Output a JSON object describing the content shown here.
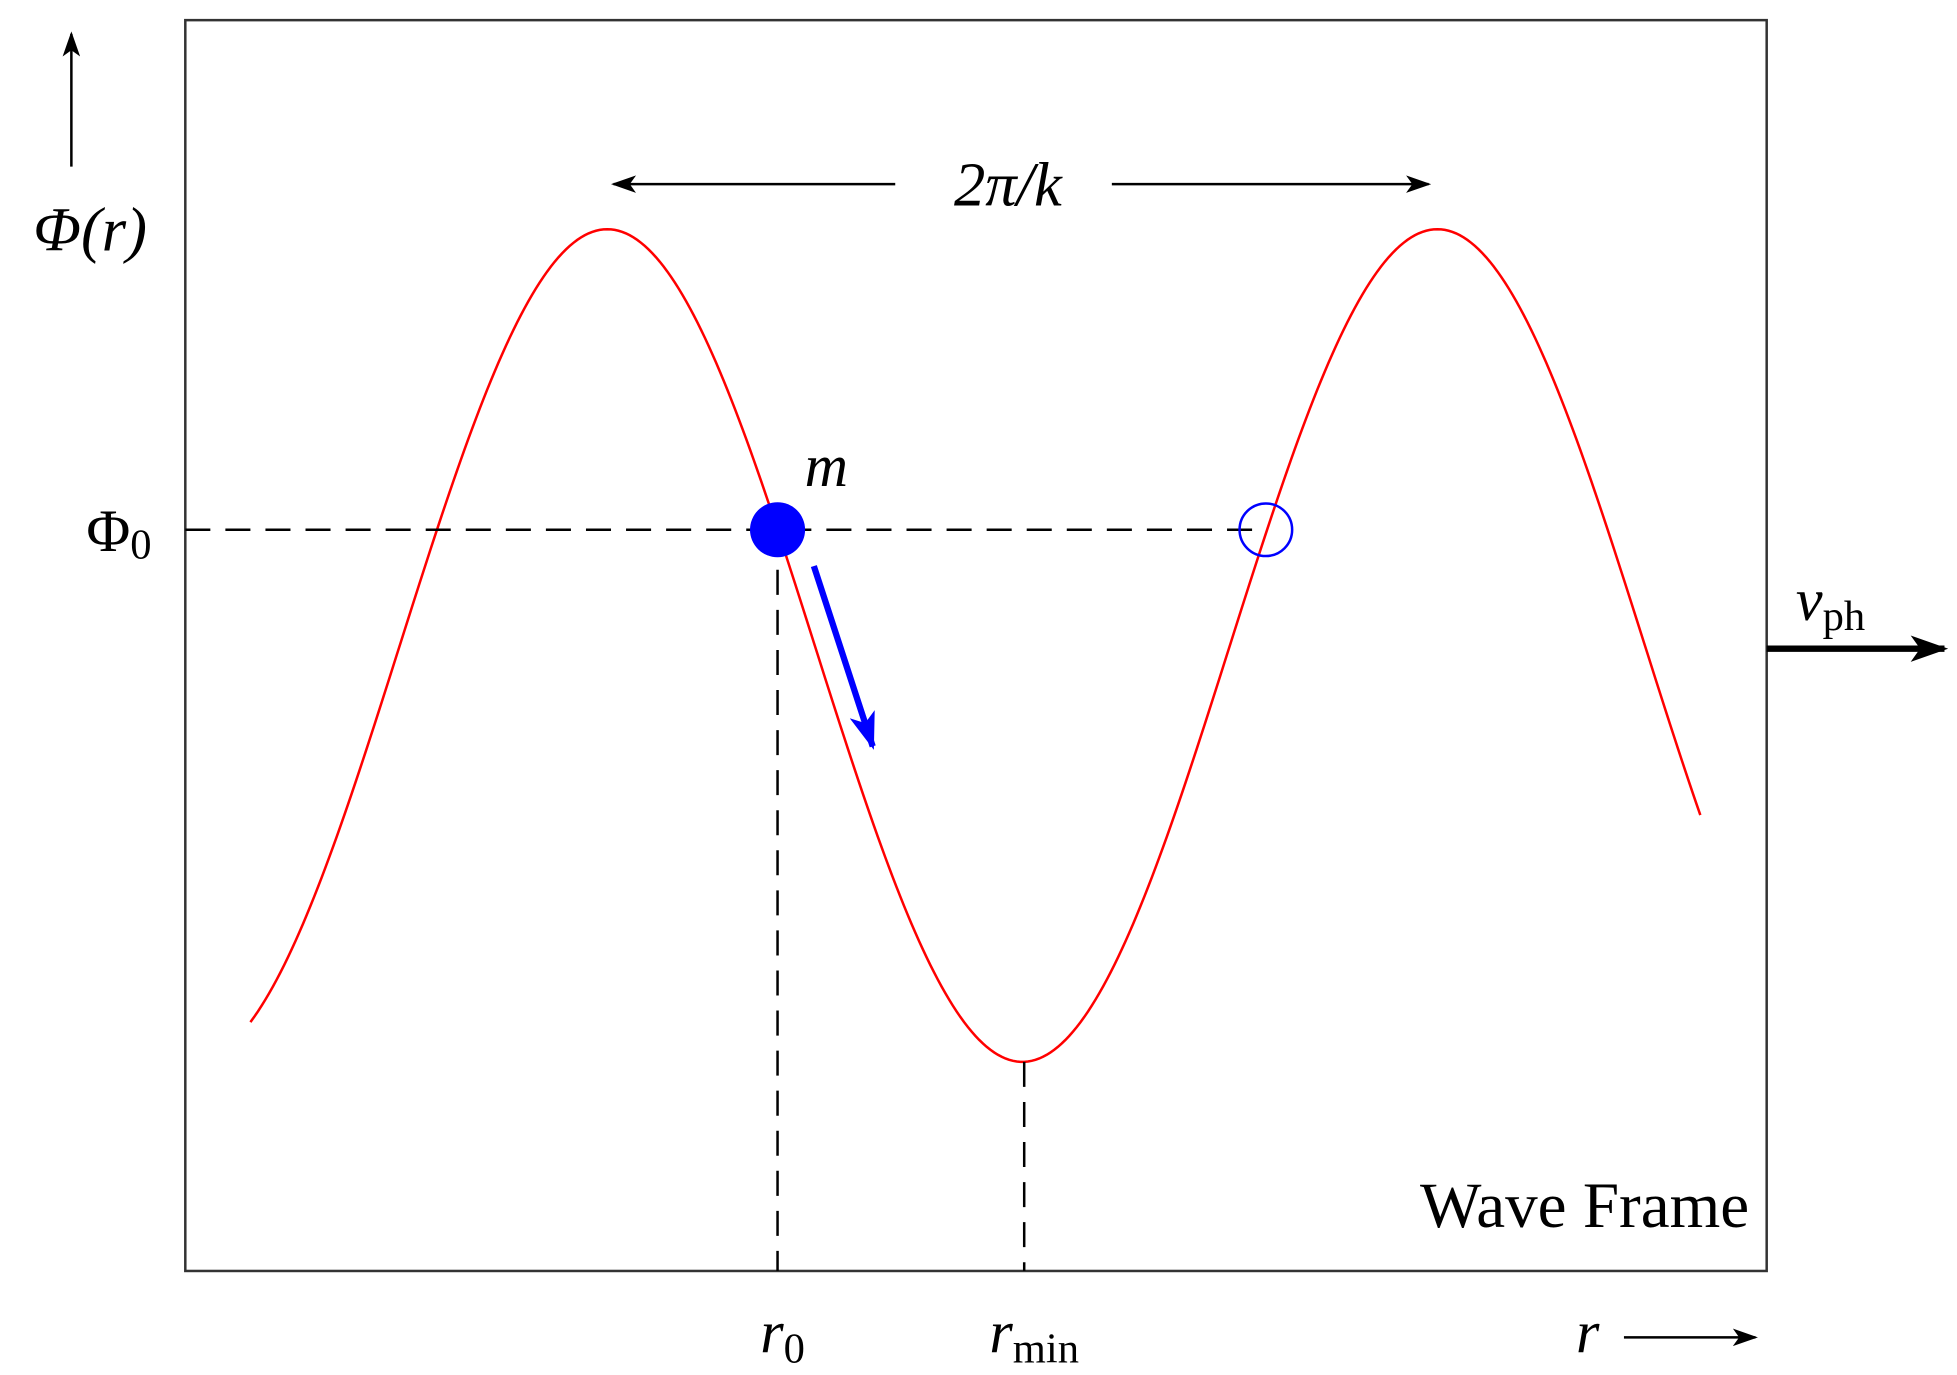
{
  "axes": {
    "y_label": "Φ(r)",
    "x_label": "r"
  },
  "annotations": {
    "wavelength": "2π/k",
    "mass": "m",
    "phi0": {
      "symbol": "Φ",
      "subscript": "0"
    },
    "r0": {
      "symbol": "r",
      "subscript": "0"
    },
    "rmin": {
      "symbol": "r",
      "subscript": "min"
    },
    "vph": {
      "symbol": "v",
      "subscript": "ph"
    },
    "frame": "Wave Frame"
  }
}
